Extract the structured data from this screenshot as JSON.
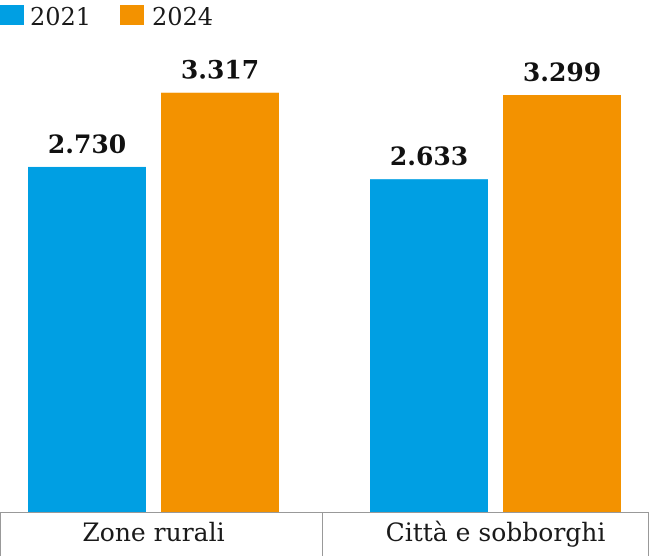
{
  "chart_data": {
    "type": "bar",
    "categories": [
      "Zone rurali",
      "Città e sobborghi"
    ],
    "series": [
      {
        "name": "2021",
        "values": [
          2730,
          2633
        ],
        "labels": [
          "2.730",
          "2.633"
        ]
      },
      {
        "name": "2024",
        "values": [
          3317,
          3299
        ],
        "labels": [
          "3.317",
          "3.299"
        ]
      }
    ],
    "colors": [
      "#009fe3",
      "#f39200"
    ],
    "ylim": [
      0,
      3500
    ],
    "legend_position": "top-left",
    "grid": false,
    "baseline_color": "#999999"
  }
}
